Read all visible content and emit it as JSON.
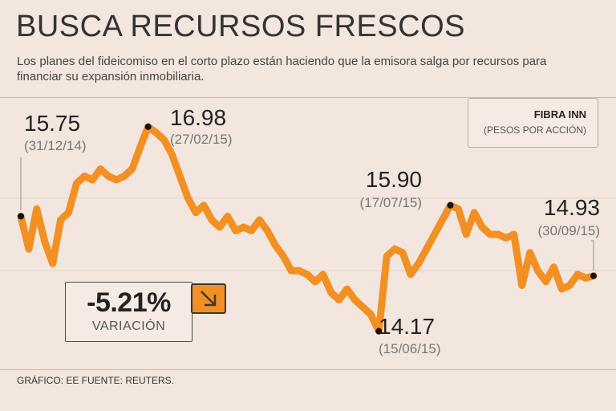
{
  "title": "BUSCA RECURSOS FRESCOS",
  "subtitle": "Los planes del fideicomiso en el corto plazo están haciendo que la emisora salga por recursos para financiar su expansión inmobiliaria.",
  "legend": {
    "name": "FIBRA INN",
    "unit": "(PESOS POR ACCIÓN)"
  },
  "variation": {
    "value": "-5.21%",
    "label": "VARIACIÓN"
  },
  "footer": "GRÁFICO: EE  FUENTE: REUTERS.",
  "colors": {
    "line": "#f29023",
    "background": "#f3e6de",
    "point": "#111111"
  },
  "chart_data": {
    "type": "line",
    "title": "BUSCA RECURSOS FRESCOS",
    "series_name": "FIBRA INN (PESOS POR ACCIÓN)",
    "x_start": "31/12/14",
    "x_end": "30/09/15",
    "ylim": [
      13.9,
      17.2
    ],
    "values": [
      15.75,
      15.3,
      15.85,
      15.4,
      15.1,
      15.7,
      15.8,
      16.2,
      16.3,
      16.25,
      16.4,
      16.3,
      16.25,
      16.3,
      16.4,
      16.7,
      16.98,
      16.9,
      16.8,
      16.6,
      16.3,
      16.0,
      15.8,
      15.9,
      15.7,
      15.6,
      15.75,
      15.55,
      15.6,
      15.55,
      15.7,
      15.55,
      15.35,
      15.2,
      15.0,
      15.0,
      14.95,
      14.85,
      14.95,
      14.7,
      14.6,
      14.75,
      14.6,
      14.5,
      14.4,
      14.17,
      15.2,
      15.3,
      15.25,
      14.95,
      15.1,
      15.3,
      15.5,
      15.7,
      15.9,
      15.85,
      15.5,
      15.8,
      15.6,
      15.5,
      15.5,
      15.45,
      15.5,
      14.8,
      15.25,
      15.0,
      14.85,
      15.05,
      14.75,
      14.8,
      14.95,
      14.9,
      14.93
    ],
    "annotations": [
      {
        "value_label": "15.75",
        "date": "(31/12/14)",
        "index": 0
      },
      {
        "value_label": "16.98",
        "date": "(27/02/15)",
        "index": 16
      },
      {
        "value_label": "14.17",
        "date": "(15/06/15)",
        "index": 45
      },
      {
        "value_label": "15.90",
        "date": "(17/07/15)",
        "index": 54
      },
      {
        "value_label": "14.93",
        "date": "(30/09/15)",
        "index": 72
      }
    ]
  }
}
